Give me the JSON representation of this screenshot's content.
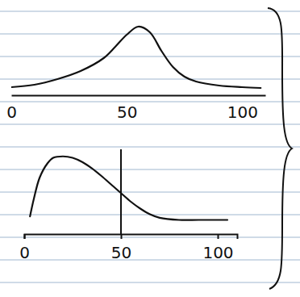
{
  "chart_data": [
    {
      "type": "line",
      "x": [
        0,
        10,
        20,
        30,
        40,
        45,
        50,
        55,
        60,
        65,
        70,
        75,
        80,
        90,
        100,
        108
      ],
      "values": [
        1,
        1.3,
        2,
        3,
        4.6,
        6,
        7.5,
        8.5,
        7.8,
        5.5,
        3.5,
        2.3,
        1.7,
        1.2,
        1,
        0.9
      ],
      "xlim": [
        0,
        110
      ],
      "xticks": [
        0,
        50,
        100
      ],
      "ylim": [
        0,
        10
      ],
      "tick_labels": "x",
      "color": "#111111"
    },
    {
      "type": "line",
      "x": [
        3,
        5,
        8,
        12,
        15,
        20,
        25,
        30,
        35,
        40,
        45,
        50,
        55,
        60,
        65,
        70,
        80,
        90,
        100,
        105
      ],
      "values": [
        2.5,
        5,
        8,
        10,
        10.8,
        11,
        10.8,
        10.2,
        9.3,
        8.2,
        7,
        5.8,
        4.6,
        3.6,
        2.8,
        2.3,
        2,
        2,
        2,
        2
      ],
      "xlim": [
        0,
        110
      ],
      "xticks": [
        0,
        50,
        100
      ],
      "ylim": [
        0,
        12
      ],
      "tick_labels": "x",
      "color": "#111111",
      "vline": 50
    }
  ]
}
